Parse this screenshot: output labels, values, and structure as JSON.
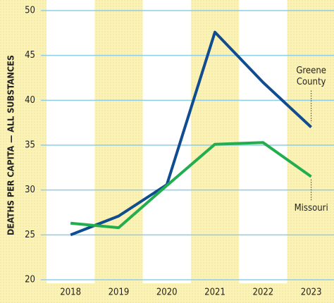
{
  "chart_data": {
    "type": "line",
    "y_label": "DEATHS PER CAPITA — ALL SUBSTANCES",
    "categories": [
      "2018",
      "2019",
      "2020",
      "2021",
      "2022",
      "2023"
    ],
    "series": [
      {
        "name": "Greene County",
        "label_lines": [
          "Greene",
          "County"
        ],
        "color": "#0f4c90",
        "values": [
          25.0,
          27.1,
          30.6,
          47.6,
          42.0,
          37.0
        ]
      },
      {
        "name": "Missouri",
        "label_lines": [
          "Missouri"
        ],
        "color": "#22ad4f",
        "values": [
          26.3,
          25.8,
          30.5,
          35.1,
          35.3,
          31.5
        ]
      }
    ],
    "ylim": [
      20,
      50
    ],
    "yticks": [
      20,
      25,
      30,
      35,
      40,
      45,
      50
    ],
    "grid": true
  }
}
